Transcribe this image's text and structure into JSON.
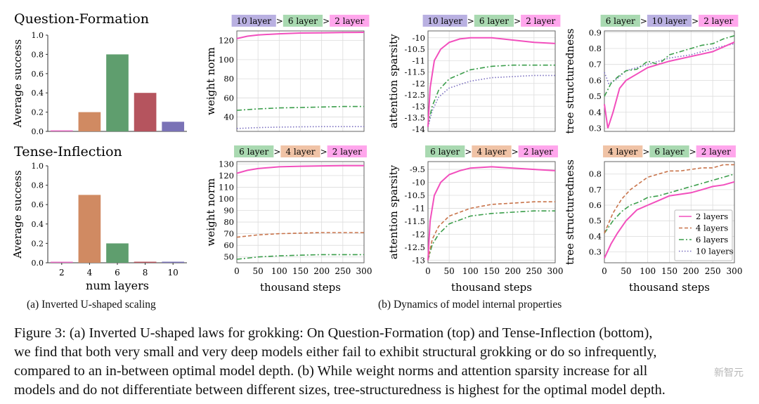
{
  "figure": {
    "caption_lines": [
      "Figure 3: (a) Inverted U-shaped laws for grokking: On Question-Formation (top) and Tense-Inflection (bottom),",
      "we find that both very small and very deep models either fail to exhibit structural grokking or do so infrequently,",
      "compared to an in-between optimal model depth. (b) While weight norms and attention sparsity increase for all",
      "models and do not differentiate between different sizes, tree-structuredness is highest for the optimal model depth."
    ],
    "subcaption_a": "(a) Inverted U-shaped scaling",
    "subcaption_b": "(b) Dynamics of model internal properties",
    "row_titles": [
      "Question-Formation",
      "Tense-Inflection"
    ],
    "watermark": "新智元"
  },
  "colors": {
    "layers_2": "#f24fbd",
    "layers_4": "#c8734a",
    "layers_6": "#3b9e4b",
    "layers_10": "#7a6fc0",
    "bar_2": "#e56bc3",
    "bar_4": "#d08a62",
    "bar_6": "#5f9e6e",
    "bar_8": "#b5545e",
    "bar_10": "#7a72b6"
  },
  "chart_data": [
    {
      "id": "qf_bar",
      "type": "bar",
      "title": "Question-Formation",
      "categories": [
        "2",
        "4",
        "6",
        "8",
        "10"
      ],
      "values": [
        0.0,
        0.2,
        0.8,
        0.4,
        0.1
      ],
      "ylabel": "Average success",
      "xlabel": "",
      "ylim": [
        0,
        1.0
      ],
      "yticks": [
        0.0,
        0.2,
        0.4,
        0.6,
        0.8,
        1.0
      ],
      "show_xticklabels": false,
      "grid": false
    },
    {
      "id": "ti_bar",
      "type": "bar",
      "title": "Tense-Inflection",
      "categories": [
        "2",
        "4",
        "6",
        "8",
        "10"
      ],
      "values": [
        0.0,
        0.7,
        0.2,
        0.0,
        0.0
      ],
      "ylabel": "Average success",
      "xlabel": "num layers",
      "ylim": [
        0,
        1.0
      ],
      "yticks": [
        0.0,
        0.2,
        0.4,
        0.6,
        0.8,
        1.0
      ],
      "show_xticklabels": true,
      "grid": false
    },
    {
      "id": "qf_weight",
      "type": "line",
      "ylabel": "weight norm",
      "xlabel": "",
      "xlim": [
        0,
        300
      ],
      "ylim": [
        25,
        130
      ],
      "yticks": [
        40,
        60,
        80,
        100,
        120
      ],
      "xticks": [
        0,
        50,
        100,
        150,
        200,
        250,
        300
      ],
      "show_xticklabels": false,
      "grid": true,
      "ordering": [
        "10 layer",
        "6 layer",
        "2 layer"
      ],
      "series": [
        {
          "layers": 10,
          "x": [
            0,
            50,
            100,
            150,
            200,
            250,
            300
          ],
          "y": [
            28,
            29,
            29.5,
            29.8,
            30,
            30,
            30
          ]
        },
        {
          "layers": 6,
          "x": [
            0,
            50,
            100,
            150,
            200,
            250,
            300
          ],
          "y": [
            47,
            48.5,
            49.5,
            50,
            50.5,
            51,
            51
          ]
        },
        {
          "layers": 2,
          "x": [
            0,
            25,
            50,
            100,
            150,
            200,
            250,
            300
          ],
          "y": [
            122,
            124.5,
            125.8,
            127,
            127.8,
            128,
            128.3,
            128.5
          ]
        }
      ]
    },
    {
      "id": "ti_weight",
      "type": "line",
      "ylabel": "weight norm",
      "xlabel": "thousand steps",
      "xlim": [
        0,
        300
      ],
      "ylim": [
        45,
        132
      ],
      "yticks": [
        50,
        60,
        70,
        80,
        90,
        100,
        110,
        120,
        130
      ],
      "xticks": [
        0,
        50,
        100,
        150,
        200,
        250,
        300
      ],
      "show_xticklabels": true,
      "grid": true,
      "ordering": [
        "6 layer",
        "4 layer",
        "2 layer"
      ],
      "series": [
        {
          "layers": 6,
          "x": [
            0,
            50,
            100,
            150,
            200,
            250,
            300
          ],
          "y": [
            48,
            50,
            51,
            51.5,
            52,
            52,
            52
          ]
        },
        {
          "layers": 4,
          "x": [
            0,
            50,
            100,
            150,
            200,
            250,
            300
          ],
          "y": [
            67,
            69,
            70,
            70.5,
            71,
            71,
            71
          ]
        },
        {
          "layers": 2,
          "x": [
            0,
            25,
            50,
            100,
            150,
            200,
            250,
            300
          ],
          "y": [
            122,
            124.5,
            126,
            127.5,
            128,
            128.3,
            128.5,
            128.5
          ]
        }
      ]
    },
    {
      "id": "qf_attn",
      "type": "line",
      "ylabel": "attention sparsity",
      "xlabel": "",
      "xlim": [
        0,
        300
      ],
      "ylim": [
        -14.1,
        -9.7
      ],
      "yticks": [
        -14.0,
        -13.5,
        -13.0,
        -12.5,
        -12.0,
        -11.5,
        -11.0,
        -10.5,
        -10.0
      ],
      "xticks": [
        0,
        50,
        100,
        150,
        200,
        250,
        300
      ],
      "show_xticklabels": false,
      "grid": true,
      "ordering": [
        "10 layer",
        "6 layer",
        "2 layer"
      ],
      "series": [
        {
          "layers": 10,
          "x": [
            0,
            10,
            25,
            50,
            100,
            150,
            200,
            250,
            300
          ],
          "y": [
            -13.9,
            -13.2,
            -12.6,
            -12.2,
            -11.9,
            -11.75,
            -11.7,
            -11.65,
            -11.65
          ]
        },
        {
          "layers": 6,
          "x": [
            0,
            10,
            25,
            50,
            100,
            150,
            200,
            250,
            300
          ],
          "y": [
            -13.8,
            -13.0,
            -12.3,
            -11.8,
            -11.4,
            -11.25,
            -11.2,
            -11.2,
            -11.2
          ]
        },
        {
          "layers": 2,
          "x": [
            0,
            5,
            15,
            30,
            50,
            75,
            100,
            150,
            200,
            250,
            300
          ],
          "y": [
            -13.9,
            -12.2,
            -11.0,
            -10.5,
            -10.2,
            -10.05,
            -10.0,
            -10.0,
            -10.1,
            -10.2,
            -10.25
          ]
        }
      ]
    },
    {
      "id": "ti_attn",
      "type": "line",
      "ylabel": "attention sparsity",
      "xlabel": "thousand steps",
      "xlim": [
        0,
        300
      ],
      "ylim": [
        -13.1,
        -9.2
      ],
      "yticks": [
        -13.0,
        -12.5,
        -12.0,
        -11.5,
        -11.0,
        -10.5,
        -10.0,
        -9.5
      ],
      "xticks": [
        0,
        50,
        100,
        150,
        200,
        250,
        300
      ],
      "show_xticklabels": true,
      "grid": true,
      "ordering": [
        "6 layer",
        "4 layer",
        "2 layer"
      ],
      "series": [
        {
          "layers": 6,
          "x": [
            0,
            10,
            25,
            50,
            100,
            150,
            200,
            250,
            300
          ],
          "y": [
            -13.0,
            -12.4,
            -12.0,
            -11.6,
            -11.3,
            -11.2,
            -11.15,
            -11.1,
            -11.1
          ]
        },
        {
          "layers": 4,
          "x": [
            0,
            10,
            25,
            50,
            100,
            150,
            200,
            250,
            300
          ],
          "y": [
            -13.0,
            -12.2,
            -11.7,
            -11.3,
            -11.0,
            -10.85,
            -10.8,
            -10.75,
            -10.75
          ]
        },
        {
          "layers": 2,
          "x": [
            0,
            5,
            15,
            30,
            50,
            75,
            100,
            150,
            200,
            250,
            300
          ],
          "y": [
            -13.0,
            -11.5,
            -10.5,
            -10.0,
            -9.7,
            -9.55,
            -9.45,
            -9.4,
            -9.45,
            -9.5,
            -9.55
          ]
        }
      ]
    },
    {
      "id": "qf_tree",
      "type": "line",
      "ylabel": "tree structuredness",
      "xlabel": "",
      "xlim": [
        0,
        300
      ],
      "ylim": [
        0.28,
        0.91
      ],
      "yticks": [
        0.3,
        0.4,
        0.5,
        0.6,
        0.7,
        0.8,
        0.9
      ],
      "xticks": [
        0,
        50,
        100,
        150,
        200,
        250,
        300
      ],
      "show_xticklabels": false,
      "grid": true,
      "ordering": [
        "6 layer",
        "10 layer",
        "2 layer"
      ],
      "series": [
        {
          "layers": 10,
          "x": [
            0,
            10,
            25,
            50,
            100,
            150,
            200,
            250,
            300
          ],
          "y": [
            0.65,
            0.58,
            0.6,
            0.66,
            0.7,
            0.74,
            0.76,
            0.8,
            0.83
          ]
        },
        {
          "layers": 6,
          "x": [
            0,
            15,
            30,
            50,
            75,
            100,
            125,
            150,
            175,
            200,
            225,
            250,
            275,
            300
          ],
          "y": [
            0.5,
            0.58,
            0.62,
            0.66,
            0.67,
            0.72,
            0.7,
            0.76,
            0.78,
            0.8,
            0.82,
            0.83,
            0.86,
            0.88
          ]
        },
        {
          "layers": 2,
          "x": [
            0,
            8,
            20,
            35,
            50,
            75,
            100,
            150,
            200,
            250,
            300
          ],
          "y": [
            0.45,
            0.3,
            0.4,
            0.55,
            0.6,
            0.64,
            0.68,
            0.72,
            0.75,
            0.78,
            0.84
          ]
        }
      ]
    },
    {
      "id": "ti_tree",
      "type": "line",
      "ylabel": "tree structuredness",
      "xlabel": "thousand steps",
      "xlim": [
        0,
        300
      ],
      "ylim": [
        0.23,
        0.88
      ],
      "yticks": [
        0.3,
        0.4,
        0.5,
        0.6,
        0.7,
        0.8
      ],
      "xticks": [
        0,
        50,
        100,
        150,
        200,
        250,
        300
      ],
      "show_xticklabels": true,
      "grid": true,
      "ordering": [
        "4 layer",
        "6 layer",
        "2 layer"
      ],
      "legend": [
        "2 layers",
        "4 layers",
        "6 layers",
        "10 layers"
      ],
      "legend_loc": "lower-right",
      "series": [
        {
          "layers": 6,
          "x": [
            0,
            20,
            40,
            60,
            80,
            100,
            125,
            150,
            175,
            200,
            225,
            250,
            275,
            300
          ],
          "y": [
            0.42,
            0.5,
            0.56,
            0.6,
            0.62,
            0.65,
            0.66,
            0.68,
            0.7,
            0.72,
            0.74,
            0.76,
            0.78,
            0.8
          ]
        },
        {
          "layers": 4,
          "x": [
            0,
            20,
            40,
            60,
            80,
            100,
            125,
            150,
            175,
            200,
            225,
            250,
            275,
            300
          ],
          "y": [
            0.42,
            0.55,
            0.64,
            0.7,
            0.74,
            0.78,
            0.8,
            0.82,
            0.82,
            0.83,
            0.84,
            0.84,
            0.86,
            0.86
          ]
        },
        {
          "layers": 2,
          "x": [
            0,
            15,
            30,
            50,
            75,
            100,
            125,
            150,
            175,
            200,
            225,
            250,
            275,
            300
          ],
          "y": [
            0.26,
            0.35,
            0.42,
            0.5,
            0.57,
            0.6,
            0.63,
            0.66,
            0.67,
            0.68,
            0.7,
            0.72,
            0.73,
            0.75
          ]
        }
      ]
    }
  ]
}
